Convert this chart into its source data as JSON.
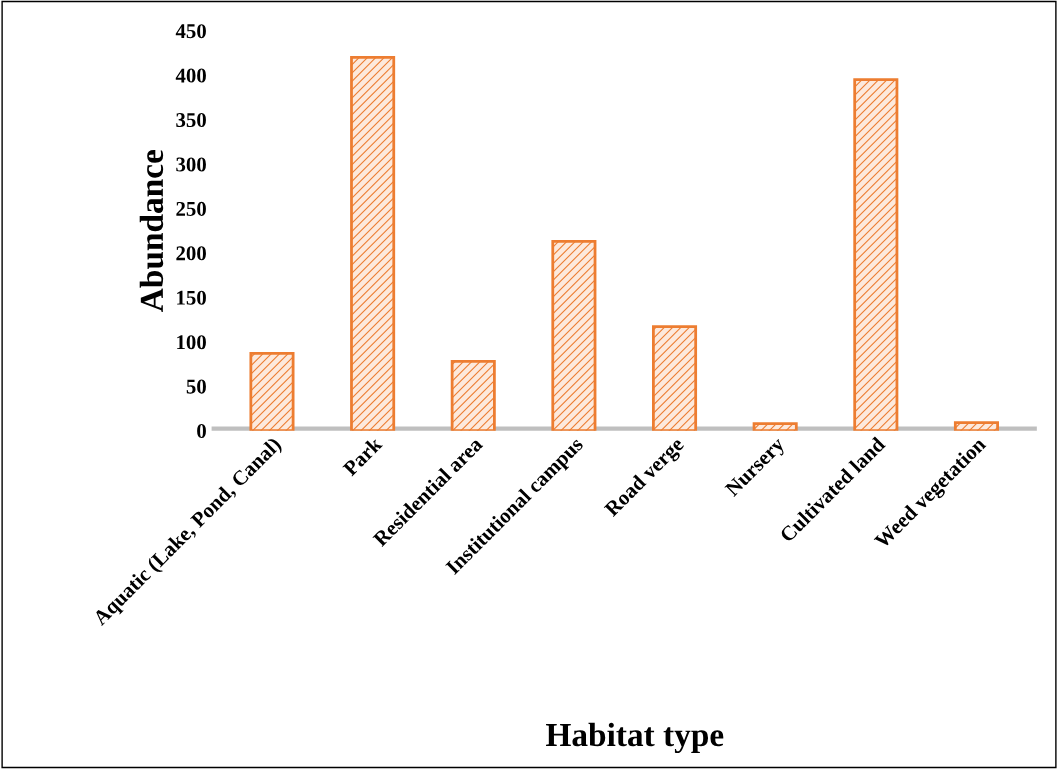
{
  "chart_data": {
    "type": "bar",
    "xlabel": "Habitat type",
    "ylabel": "Abundance",
    "categories": [
      "Aquatic (Lake, Pond, Canal)",
      "Park",
      "Residential area",
      "Institutional campus",
      "Road verge",
      "Nursery",
      "Cultivated land",
      "Weed vegetation"
    ],
    "values": [
      87,
      420,
      78,
      213,
      117,
      8,
      395,
      9
    ],
    "color": "#ed7d31",
    "ylim": [
      0,
      450
    ],
    "yticks": [
      0,
      50,
      100,
      150,
      200,
      250,
      300,
      350,
      400,
      450
    ],
    "grid": false,
    "legend": false
  }
}
